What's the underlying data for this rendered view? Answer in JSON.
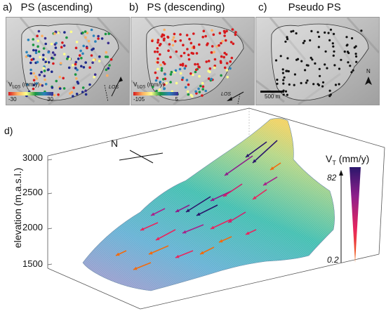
{
  "panels": {
    "a": {
      "tag": "a)",
      "title": "PS (ascending)",
      "colorbar": {
        "label": "V",
        "sub": "LOS",
        "unit": "(mm/y)",
        "min": "-30",
        "max": "30"
      },
      "los": "LOS"
    },
    "b": {
      "tag": "b)",
      "title": "PS (descending)",
      "colorbar": {
        "label": "V",
        "sub": "LOS",
        "unit": "(mm/y)",
        "min": "-105",
        "max": "5"
      },
      "los": "LOS"
    },
    "c": {
      "tag": "c)",
      "title": "Pseudo PS",
      "north": "N",
      "scale": "500 m"
    }
  },
  "panel_d": {
    "tag": "d)",
    "ylabel": "elevation (m.a.s.l.)",
    "yticks": [
      "3000",
      "2500",
      "2000",
      "1500"
    ],
    "north": "N",
    "vt": {
      "label": "V",
      "sub": "T",
      "unit": "(mm/y)",
      "max": "82",
      "min": "0.2"
    }
  },
  "colors": {
    "ps_red": "#d7191c",
    "ps_blue": "#1f2a8c",
    "ps_green": "#2aa35a",
    "surface_low": "#8fb6d8",
    "surface_mid": "#4bbfb0",
    "surface_high": "#e9d25e",
    "vt_high": "#2b176b",
    "vt_low": "#f26a0c"
  }
}
